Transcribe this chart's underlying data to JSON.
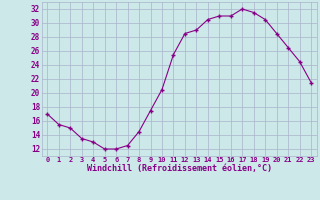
{
  "hours": [
    0,
    1,
    2,
    3,
    4,
    5,
    6,
    7,
    8,
    9,
    10,
    11,
    12,
    13,
    14,
    15,
    16,
    17,
    18,
    19,
    20,
    21,
    22,
    23
  ],
  "values": [
    17,
    15.5,
    15,
    13.5,
    13,
    12,
    12,
    12.5,
    14.5,
    17.5,
    20.5,
    25.5,
    28.5,
    29,
    30.5,
    31,
    31,
    32,
    31.5,
    30.5,
    28.5,
    26.5,
    24.5,
    21.5
  ],
  "bg_color": "#cce8e8",
  "line_color": "#880088",
  "marker_color": "#880088",
  "grid_color": "#aab4cc",
  "xlabel": "Windchill (Refroidissement éolien,°C)",
  "xlabel_color": "#880088",
  "ylim": [
    11,
    33
  ],
  "xlim": [
    -0.5,
    23.5
  ],
  "yticks": [
    12,
    14,
    16,
    18,
    20,
    22,
    24,
    26,
    28,
    30,
    32
  ],
  "xticks": [
    0,
    1,
    2,
    3,
    4,
    5,
    6,
    7,
    8,
    9,
    10,
    11,
    12,
    13,
    14,
    15,
    16,
    17,
    18,
    19,
    20,
    21,
    22,
    23
  ],
  "xtick_labels": [
    "0",
    "1",
    "2",
    "3",
    "4",
    "5",
    "6",
    "7",
    "8",
    "9",
    "10",
    "11",
    "12",
    "13",
    "14",
    "15",
    "16",
    "17",
    "18",
    "19",
    "20",
    "21",
    "22",
    "23"
  ],
  "tick_color": "#880088",
  "font_family": "monospace",
  "tick_fontsize": 5.0,
  "ytick_fontsize": 5.5,
  "xlabel_fontsize": 6.0
}
